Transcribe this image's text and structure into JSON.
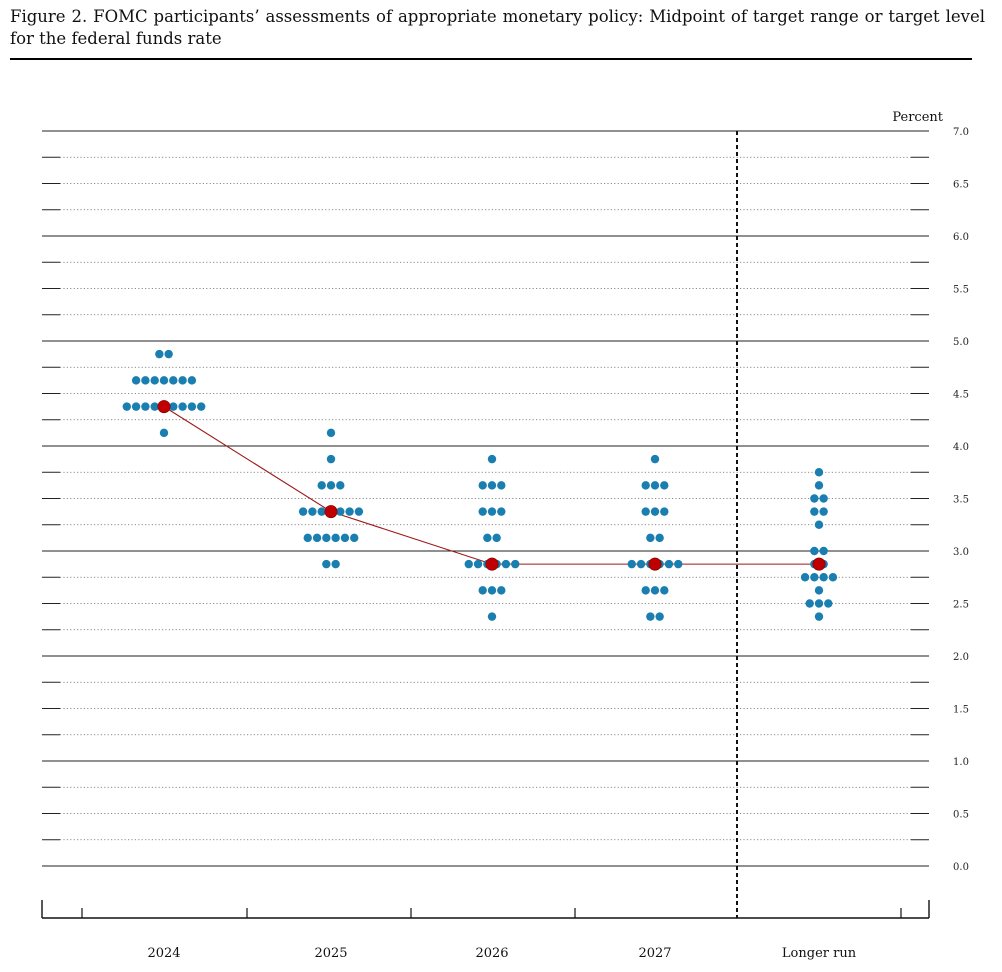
{
  "figure": {
    "title": "Figure 2. FOMC participants’ assessments of appropriate monetary policy: Midpoint of target range or target level for the federal funds rate"
  },
  "chart_data": {
    "type": "scatter",
    "unit_label": "Percent",
    "ylim": [
      0.0,
      7.0
    ],
    "y_ticks": [
      "0.0",
      "0.5",
      "1.0",
      "1.5",
      "2.0",
      "2.5",
      "3.0",
      "3.5",
      "4.0",
      "4.5",
      "5.0",
      "5.5",
      "6.0",
      "6.5",
      "7.0"
    ],
    "categories": [
      "2024",
      "2025",
      "2026",
      "2027",
      "Longer run"
    ],
    "dots": [
      {
        "category": "2024",
        "counts": [
          {
            "rate": 4.875,
            "n": 2
          },
          {
            "rate": 4.625,
            "n": 7
          },
          {
            "rate": 4.375,
            "n": 9
          },
          {
            "rate": 4.125,
            "n": 1
          }
        ]
      },
      {
        "category": "2025",
        "counts": [
          {
            "rate": 4.125,
            "n": 1
          },
          {
            "rate": 3.875,
            "n": 1
          },
          {
            "rate": 3.625,
            "n": 3
          },
          {
            "rate": 3.375,
            "n": 7
          },
          {
            "rate": 3.125,
            "n": 6
          },
          {
            "rate": 2.875,
            "n": 2
          }
        ]
      },
      {
        "category": "2026",
        "counts": [
          {
            "rate": 3.875,
            "n": 1
          },
          {
            "rate": 3.625,
            "n": 3
          },
          {
            "rate": 3.375,
            "n": 3
          },
          {
            "rate": 3.125,
            "n": 2
          },
          {
            "rate": 2.875,
            "n": 6
          },
          {
            "rate": 2.625,
            "n": 3
          },
          {
            "rate": 2.375,
            "n": 1
          }
        ]
      },
      {
        "category": "2027",
        "counts": [
          {
            "rate": 3.875,
            "n": 1
          },
          {
            "rate": 3.625,
            "n": 3
          },
          {
            "rate": 3.375,
            "n": 3
          },
          {
            "rate": 3.125,
            "n": 2
          },
          {
            "rate": 2.875,
            "n": 6
          },
          {
            "rate": 2.625,
            "n": 3
          },
          {
            "rate": 2.375,
            "n": 2
          }
        ]
      },
      {
        "category": "Longer run",
        "counts": [
          {
            "rate": 3.75,
            "n": 1
          },
          {
            "rate": 3.625,
            "n": 1
          },
          {
            "rate": 3.5,
            "n": 2
          },
          {
            "rate": 3.375,
            "n": 2
          },
          {
            "rate": 3.25,
            "n": 1
          },
          {
            "rate": 3.0,
            "n": 2
          },
          {
            "rate": 2.875,
            "n": 2
          },
          {
            "rate": 2.75,
            "n": 4
          },
          {
            "rate": 2.625,
            "n": 1
          },
          {
            "rate": 2.5,
            "n": 3
          },
          {
            "rate": 2.375,
            "n": 1
          }
        ]
      }
    ],
    "median": {
      "x": [
        "2024",
        "2025",
        "2026",
        "2027",
        "Longer run"
      ],
      "y": [
        4.375,
        3.375,
        2.875,
        2.875,
        2.875
      ]
    },
    "grid": true,
    "colors": {
      "dot": "#1a7fb0",
      "median": "#c00000",
      "median_line": "#a01818"
    }
  }
}
